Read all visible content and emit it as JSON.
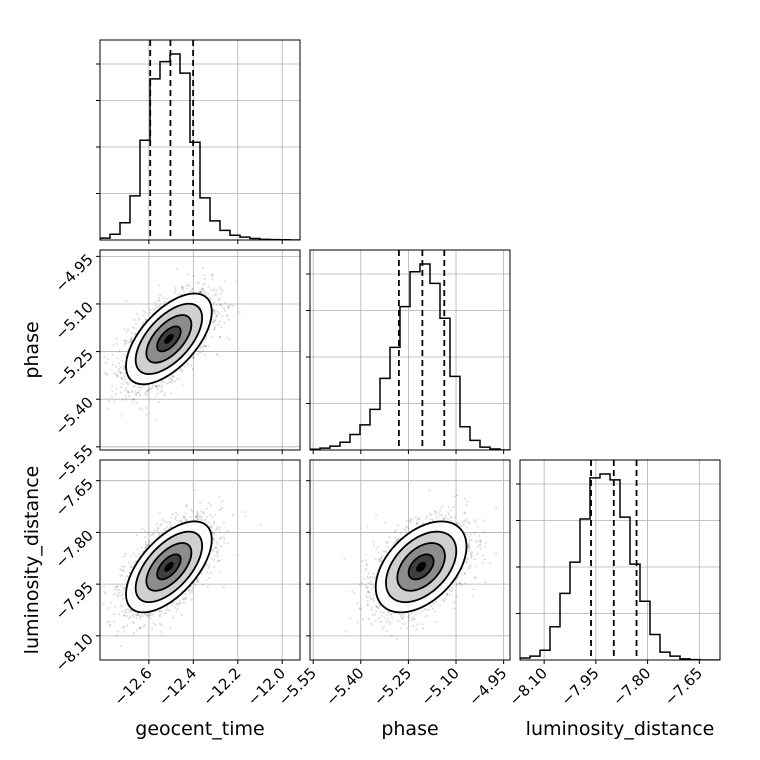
{
  "chart_data": {
    "type": "corner",
    "parameters": [
      "geocent_time",
      "phase",
      "luminosity_distance"
    ],
    "axis_labels": {
      "geocent_time": "geocent_time",
      "phase": "phase",
      "luminosity_distance": "luminosity_distance"
    },
    "ranges": {
      "geocent_time": [
        -12.82,
        -11.92
      ],
      "phase": [
        -5.56,
        -4.93
      ],
      "luminosity_distance": [
        -8.17,
        -7.59
      ]
    },
    "ticks": {
      "geocent_time": {
        "values": [
          -12.6,
          -12.4,
          -12.2,
          -12.0
        ],
        "labels": [
          "−12.6",
          "−12.4",
          "−12.2",
          "−12.0"
        ]
      },
      "phase": {
        "values": [
          -5.55,
          -5.4,
          -5.25,
          -5.1,
          -4.95
        ],
        "labels": [
          "−5.55",
          "−5.40",
          "−5.25",
          "−5.10",
          "−4.95"
        ]
      },
      "luminosity_distance": {
        "values": [
          -8.1,
          -7.95,
          -7.8,
          -7.65
        ],
        "labels": [
          "−8.10",
          "−7.95",
          "−7.80",
          "−7.65"
        ]
      }
    },
    "means": {
      "geocent_time": -12.51,
      "phase": -5.21,
      "luminosity_distance": -7.9
    },
    "marginals": {
      "geocent_time": {
        "bin_edges": [
          -12.82,
          -12.775,
          -12.73,
          -12.685,
          -12.64,
          -12.595,
          -12.55,
          -12.505,
          -12.46,
          -12.415,
          -12.37,
          -12.325,
          -12.28,
          -12.235,
          -12.19,
          -12.145,
          -12.1,
          -12.055,
          -12.01,
          -11.965,
          -11.92
        ],
        "counts": [
          0.01,
          0.03,
          0.09,
          0.23,
          0.52,
          0.84,
          0.93,
          0.97,
          0.87,
          0.51,
          0.22,
          0.1,
          0.05,
          0.025,
          0.015,
          0.008,
          0.003,
          0.002,
          0.001,
          0.0
        ],
        "quantiles": [
          -12.594,
          -12.503,
          -12.401
        ]
      },
      "phase": {
        "bin_edges": [
          -5.56,
          -5.5285,
          -5.497,
          -5.4655,
          -5.434,
          -5.4025,
          -5.371,
          -5.3395,
          -5.308,
          -5.2765,
          -5.245,
          -5.2135,
          -5.182,
          -5.1505,
          -5.119,
          -5.0875,
          -5.056,
          -5.0245,
          -4.993,
          -4.9615,
          -4.93
        ],
        "counts": [
          0.004,
          0.01,
          0.02,
          0.04,
          0.08,
          0.13,
          0.21,
          0.37,
          0.53,
          0.74,
          0.92,
          0.96,
          0.86,
          0.68,
          0.38,
          0.12,
          0.05,
          0.015,
          0.005,
          0.0
        ],
        "quantiles": [
          -5.28,
          -5.206,
          -5.137
        ]
      },
      "luminosity_distance": {
        "bin_edges": [
          -8.17,
          -8.141,
          -8.112,
          -8.083,
          -8.054,
          -8.025,
          -7.996,
          -7.967,
          -7.938,
          -7.909,
          -7.88,
          -7.851,
          -7.822,
          -7.793,
          -7.764,
          -7.735,
          -7.706,
          -7.677,
          -7.648,
          -7.619,
          -7.59
        ],
        "counts": [
          0.01,
          0.02,
          0.05,
          0.17,
          0.34,
          0.5,
          0.72,
          0.93,
          0.95,
          0.92,
          0.73,
          0.49,
          0.3,
          0.13,
          0.04,
          0.02,
          0.006,
          0.002,
          0.0,
          0.0
        ],
        "quantiles": [
          -7.964,
          -7.898,
          -7.832
        ]
      }
    },
    "correlations": {
      "phase|geocent_time": 0.6,
      "luminosity_distance|geocent_time": 0.6,
      "luminosity_distance|phase": 0.45
    },
    "grid": true
  }
}
